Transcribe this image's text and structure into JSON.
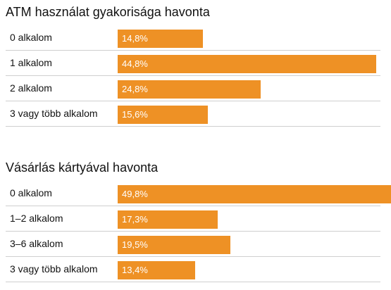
{
  "chart_data": [
    {
      "type": "bar",
      "orientation": "horizontal",
      "title": "ATM használat gyakorisága havonta",
      "categories": [
        "0 alkalom",
        "1 alkalom",
        "2 alkalom",
        "3 vagy több alkalom"
      ],
      "values": [
        14.8,
        44.8,
        24.8,
        15.6
      ],
      "value_labels": [
        "14,8%",
        "44,8%",
        "24,8%",
        "15,6%"
      ],
      "unit": "%",
      "bar_color": "#ee9125",
      "grid": false
    },
    {
      "type": "bar",
      "orientation": "horizontal",
      "title": "Vásárlás kártyával havonta",
      "categories": [
        "0 alkalom",
        "1–2 alkalom",
        "3–6 alkalom",
        "3 vagy több alkalom"
      ],
      "values": [
        49.8,
        17.3,
        19.5,
        13.4
      ],
      "value_labels": [
        "49,8%",
        "17,3%",
        "19,5%",
        "13,4%"
      ],
      "unit": "%",
      "bar_color": "#ee9125",
      "grid": false
    }
  ]
}
